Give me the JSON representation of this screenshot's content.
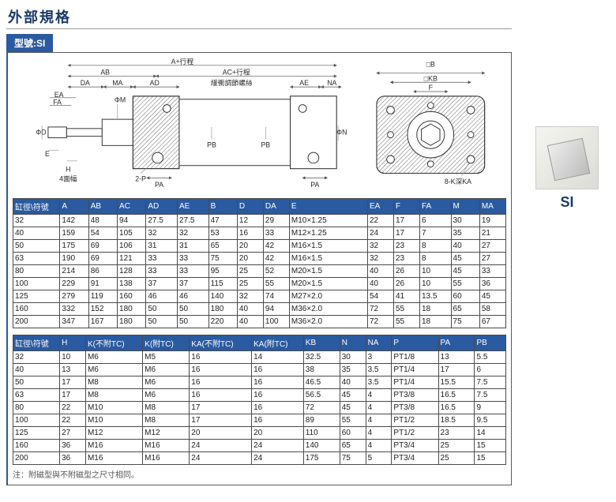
{
  "title": "外部規格",
  "model_badge": "型號:SI",
  "diagram_labels": {
    "a_stroke": "A+行程",
    "ab": "AB",
    "ac_stroke": "AC+行程",
    "da": "DA",
    "ma": "MA",
    "ad": "AD",
    "buffer": "緩衝調節螺絲",
    "ae": "AE",
    "na": "NA",
    "ea": "EA",
    "fa": "FA",
    "phi_m": "ΦM",
    "phi_d": "ΦD",
    "e": "E",
    "h": "H",
    "h4": "4面幅",
    "two_p": "2-P",
    "pa": "PA",
    "pb": "PB",
    "phi_n": "ΦN",
    "sq_b": "□B",
    "sq_kb": "□KB",
    "f": "F",
    "eight_k": "8-K深KA"
  },
  "table1": {
    "headers": [
      "缸徑\\符號",
      "A",
      "AB",
      "AC",
      "AD",
      "AE",
      "B",
      "D",
      "DA",
      "E",
      "EA",
      "F",
      "FA",
      "M",
      "MA"
    ],
    "col_widths": [
      "9%",
      "5.5%",
      "5.5%",
      "5.5%",
      "6%",
      "6%",
      "5.5%",
      "5%",
      "5%",
      "15%",
      "5%",
      "5%",
      "6%",
      "5.5%",
      "5%"
    ],
    "rows": [
      [
        "32",
        "142",
        "48",
        "94",
        "27.5",
        "27.5",
        "47",
        "12",
        "29",
        "M10×1.25",
        "22",
        "17",
        "6",
        "30",
        "19"
      ],
      [
        "40",
        "159",
        "54",
        "105",
        "32",
        "32",
        "53",
        "16",
        "33",
        "M12×1.25",
        "24",
        "17",
        "7",
        "35",
        "21"
      ],
      [
        "50",
        "175",
        "69",
        "106",
        "31",
        "31",
        "65",
        "20",
        "42",
        "M16×1.5",
        "32",
        "23",
        "8",
        "40",
        "27"
      ],
      [
        "63",
        "190",
        "69",
        "121",
        "33",
        "33",
        "75",
        "20",
        "42",
        "M16×1.5",
        "32",
        "23",
        "8",
        "45",
        "27"
      ],
      [
        "80",
        "214",
        "86",
        "128",
        "33",
        "33",
        "95",
        "25",
        "52",
        "M20×1.5",
        "40",
        "26",
        "10",
        "45",
        "33"
      ],
      [
        "100",
        "229",
        "91",
        "138",
        "37",
        "37",
        "115",
        "25",
        "55",
        "M20×1.5",
        "40",
        "26",
        "10",
        "55",
        "36"
      ],
      [
        "125",
        "279",
        "119",
        "160",
        "46",
        "46",
        "140",
        "32",
        "74",
        "M27×2.0",
        "54",
        "41",
        "13.5",
        "60",
        "45"
      ],
      [
        "160",
        "332",
        "152",
        "180",
        "50",
        "50",
        "180",
        "40",
        "94",
        "M36×2.0",
        "72",
        "55",
        "18",
        "65",
        "58"
      ],
      [
        "200",
        "347",
        "167",
        "180",
        "50",
        "50",
        "220",
        "40",
        "100",
        "M36×2.0",
        "72",
        "55",
        "18",
        "75",
        "67"
      ]
    ]
  },
  "table2": {
    "headers": [
      "缸徑\\符號",
      "H",
      "K(不附TC)",
      "K(附TC)",
      "KA(不附TC)",
      "KA(附TC)",
      "KB",
      "N",
      "NA",
      "P",
      "PA",
      "PB"
    ],
    "col_widths": [
      "9%",
      "5%",
      "11%",
      "9%",
      "12%",
      "10%",
      "7%",
      "5%",
      "5%",
      "9%",
      "7%",
      "6%"
    ],
    "rows": [
      [
        "32",
        "10",
        "M6",
        "M5",
        "16",
        "14",
        "32.5",
        "30",
        "3",
        "PT1/8",
        "13",
        "5.5"
      ],
      [
        "40",
        "13",
        "M6",
        "M6",
        "16",
        "16",
        "38",
        "35",
        "3.5",
        "PT1/4",
        "17",
        "6"
      ],
      [
        "50",
        "17",
        "M8",
        "M6",
        "16",
        "16",
        "46.5",
        "40",
        "3.5",
        "PT1/4",
        "15.5",
        "7.5"
      ],
      [
        "63",
        "17",
        "M8",
        "M6",
        "16",
        "16",
        "56.5",
        "45",
        "4",
        "PT3/8",
        "16.5",
        "7.5"
      ],
      [
        "80",
        "22",
        "M10",
        "M8",
        "17",
        "16",
        "72",
        "45",
        "4",
        "PT3/8",
        "16.5",
        "9"
      ],
      [
        "100",
        "22",
        "M10",
        "M8",
        "17",
        "16",
        "89",
        "55",
        "4",
        "PT1/2",
        "18.5",
        "9.5"
      ],
      [
        "125",
        "27",
        "M12",
        "M12",
        "20",
        "20",
        "110",
        "60",
        "4",
        "PT1/2",
        "23",
        "14"
      ],
      [
        "160",
        "36",
        "M16",
        "M16",
        "24",
        "24",
        "140",
        "65",
        "4",
        "PT3/4",
        "25",
        "15"
      ],
      [
        "200",
        "36",
        "M16",
        "M16",
        "24",
        "24",
        "175",
        "75",
        "5",
        "PT3/4",
        "25",
        "15"
      ]
    ]
  },
  "note": "注：附磁型與不附磁型之尺寸相同。",
  "side_label": "SI",
  "colors": {
    "brand": "#2a5aa0",
    "title": "#1a3a6a",
    "border": "#4a4a4a"
  }
}
